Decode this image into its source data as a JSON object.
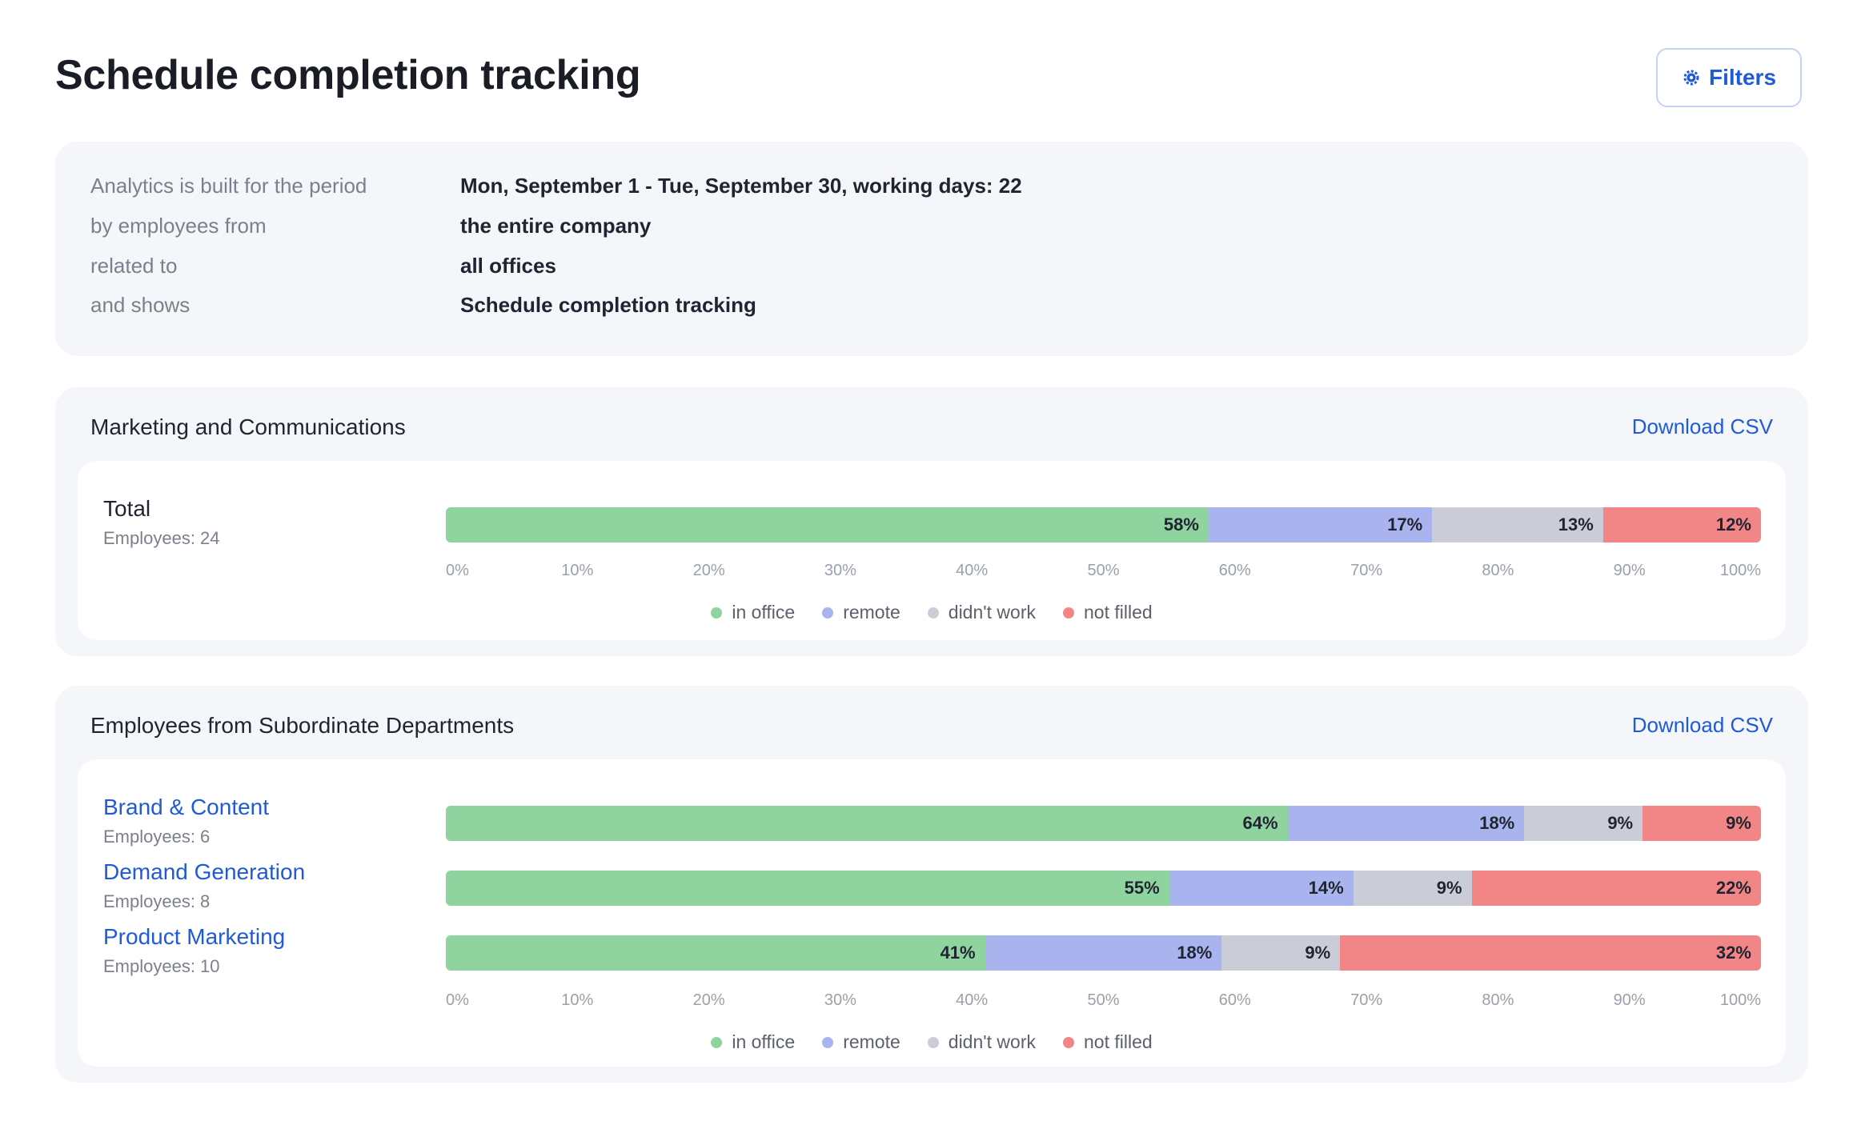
{
  "page": {
    "title": "Schedule completion tracking",
    "filters_label": "Filters"
  },
  "info": {
    "rows": [
      {
        "label": "Analytics is built for the period",
        "value": "Mon, September 1 - Tue, September 30, working days: 22"
      },
      {
        "label": "by employees from",
        "value": "the entire company"
      },
      {
        "label": "related to",
        "value": "all offices"
      },
      {
        "label": "and shows",
        "value": "Schedule completion tracking"
      }
    ]
  },
  "colors": {
    "in_office": "#8fd39e",
    "remote": "#a9b3ee",
    "didnt_work": "#cacdd8",
    "not_filled": "#f28686",
    "accent": "#1f5ad9"
  },
  "legend": [
    "in office",
    "remote",
    "didn't work",
    "not filled"
  ],
  "axis_ticks": [
    "0%",
    "10%",
    "20%",
    "30%",
    "40%",
    "50%",
    "60%",
    "70%",
    "80%",
    "90%",
    "100%"
  ],
  "marketing": {
    "title": "Marketing and Communications",
    "download_label": "Download CSV",
    "total": {
      "name": "Total",
      "employees": "Employees: 24",
      "values": [
        58,
        17,
        13,
        12
      ]
    }
  },
  "subordinate": {
    "title": "Employees from Subordinate Departments",
    "download_label": "Download CSV",
    "departments": [
      {
        "name": "Brand & Content",
        "employees": "Employees: 6",
        "values": [
          64,
          18,
          9,
          9
        ]
      },
      {
        "name": "Demand Generation",
        "employees": "Employees: 8",
        "values": [
          55,
          14,
          9,
          22
        ]
      },
      {
        "name": "Product Marketing",
        "employees": "Employees: 10",
        "values": [
          41,
          18,
          9,
          32
        ]
      }
    ]
  }
}
